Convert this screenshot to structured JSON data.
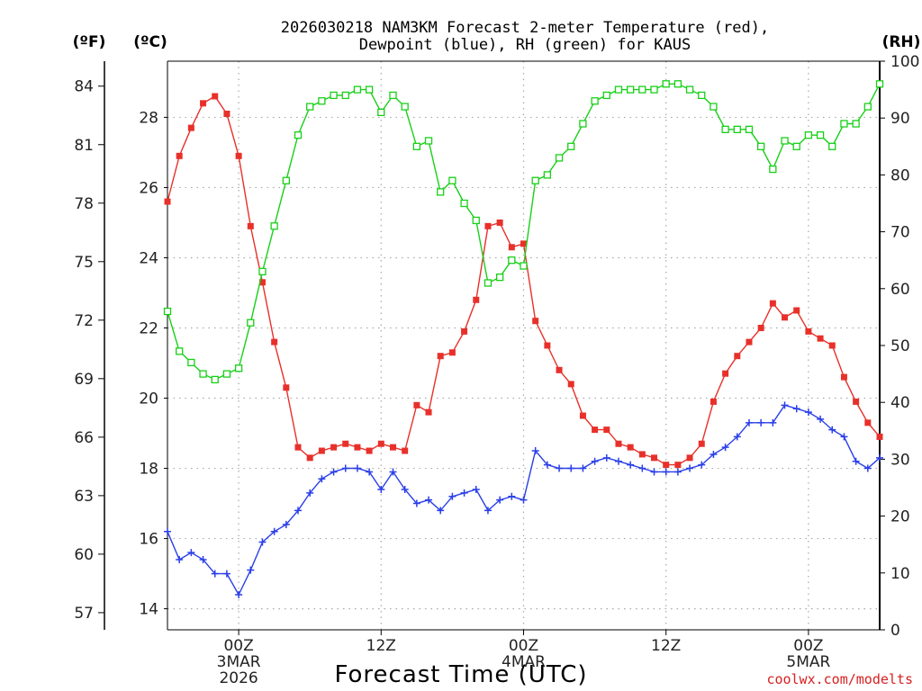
{
  "chart_data": {
    "type": "line",
    "title_line1": "2026030218 NAM3KM Forecast 2-meter Temperature (red),",
    "title_line2": "Dewpoint (blue), RH (green) for KAUS",
    "unit_f": "(ºF)",
    "unit_c": "(ºC)",
    "unit_rh": "(RH)",
    "xlabel": "Forecast Time (UTC)",
    "credit": "coolwx.com/modelts",
    "x_range_hours": [
      0,
      60
    ],
    "x_ticks": [
      {
        "hour": 6,
        "lines": [
          "00Z",
          "3MAR",
          "2026"
        ]
      },
      {
        "hour": 18,
        "lines": [
          "12Z"
        ]
      },
      {
        "hour": 30,
        "lines": [
          "00Z",
          "4MAR"
        ]
      },
      {
        "hour": 42,
        "lines": [
          "12Z"
        ]
      },
      {
        "hour": 54,
        "lines": [
          "00Z",
          "5MAR"
        ]
      }
    ],
    "y_celsius": {
      "range": [
        13.4,
        29.6
      ],
      "ticks": [
        14,
        16,
        18,
        20,
        22,
        24,
        26,
        28
      ]
    },
    "y_fahrenheit": {
      "ticks": [
        57,
        60,
        63,
        66,
        69,
        72,
        75,
        78,
        81,
        84
      ]
    },
    "y_rh": {
      "range": [
        0,
        100
      ],
      "ticks": [
        0,
        10,
        20,
        30,
        40,
        50,
        60,
        70,
        80,
        90,
        100
      ]
    },
    "series": [
      {
        "name": "Temperature (°C)",
        "color": "#e8302a",
        "marker": "filled-square",
        "axis": "celsius",
        "x": [
          0,
          1,
          2,
          3,
          4,
          5,
          6,
          7,
          8,
          9,
          10,
          11,
          12,
          13,
          14,
          15,
          16,
          17,
          18,
          19,
          20,
          21,
          22,
          23,
          24,
          25,
          26,
          27,
          28,
          29,
          30,
          31,
          32,
          33,
          34,
          35,
          36,
          37,
          38,
          39,
          40,
          41,
          42,
          43,
          44,
          45,
          46,
          47,
          48,
          49,
          50,
          51,
          52,
          53,
          54,
          55,
          56,
          57,
          58,
          59,
          60
        ],
        "values": [
          25.6,
          26.9,
          27.7,
          28.4,
          28.6,
          28.1,
          26.9,
          24.9,
          23.3,
          21.6,
          20.3,
          18.6,
          18.3,
          18.5,
          18.6,
          18.7,
          18.6,
          18.5,
          18.7,
          18.6,
          18.5,
          19.8,
          19.6,
          21.2,
          21.3,
          21.9,
          22.8,
          24.9,
          25.0,
          24.3,
          24.4,
          22.2,
          21.5,
          20.8,
          20.4,
          19.5,
          19.1,
          19.1,
          18.7,
          18.6,
          18.4,
          18.3,
          18.1,
          18.1,
          18.3,
          18.7,
          19.9,
          20.7,
          21.2,
          21.6,
          22.0,
          22.7,
          22.3,
          22.5,
          21.9,
          21.7,
          21.5,
          20.6,
          19.9,
          19.3,
          18.9
        ]
      },
      {
        "name": "Dewpoint (°C)",
        "color": "#2a3fe8",
        "marker": "plus",
        "axis": "celsius",
        "x": [
          0,
          1,
          2,
          3,
          4,
          5,
          6,
          7,
          8,
          9,
          10,
          11,
          12,
          13,
          14,
          15,
          16,
          17,
          18,
          19,
          20,
          21,
          22,
          23,
          24,
          25,
          26,
          27,
          28,
          29,
          30,
          31,
          32,
          33,
          34,
          35,
          36,
          37,
          38,
          39,
          40,
          41,
          42,
          43,
          44,
          45,
          46,
          47,
          48,
          49,
          50,
          51,
          52,
          53,
          54,
          55,
          56,
          57,
          58,
          59,
          60
        ],
        "values": [
          16.2,
          15.4,
          15.6,
          15.4,
          15.0,
          15.0,
          14.4,
          15.1,
          15.9,
          16.2,
          16.4,
          16.8,
          17.3,
          17.7,
          17.9,
          18.0,
          18.0,
          17.9,
          17.4,
          17.9,
          17.4,
          17.0,
          17.1,
          16.8,
          17.2,
          17.3,
          17.4,
          16.8,
          17.1,
          17.2,
          17.1,
          18.5,
          18.1,
          18.0,
          18.0,
          18.0,
          18.2,
          18.3,
          18.2,
          18.1,
          18.0,
          17.9,
          17.9,
          17.9,
          18.0,
          18.1,
          18.4,
          18.6,
          18.9,
          19.3,
          19.3,
          19.3,
          19.8,
          19.7,
          19.6,
          19.4,
          19.1,
          18.9,
          18.2,
          18.0,
          18.3
        ]
      },
      {
        "name": "RH (%)",
        "color": "#18d018",
        "marker": "open-square",
        "axis": "rh",
        "x": [
          0,
          1,
          2,
          3,
          4,
          5,
          6,
          7,
          8,
          9,
          10,
          11,
          12,
          13,
          14,
          15,
          16,
          17,
          18,
          19,
          20,
          21,
          22,
          23,
          24,
          25,
          26,
          27,
          28,
          29,
          30,
          31,
          32,
          33,
          34,
          35,
          36,
          37,
          38,
          39,
          40,
          41,
          42,
          43,
          44,
          45,
          46,
          47,
          48,
          49,
          50,
          51,
          52,
          53,
          54,
          55,
          56,
          57,
          58,
          59,
          60
        ],
        "values": [
          56,
          49,
          47,
          45,
          44,
          45,
          46,
          54,
          63,
          71,
          79,
          87,
          92,
          93,
          94,
          94,
          95,
          95,
          91,
          94,
          92,
          85,
          86,
          77,
          79,
          75,
          72,
          61,
          62,
          65,
          64,
          79,
          80,
          83,
          85,
          89,
          93,
          94,
          95,
          95,
          95,
          95,
          96,
          96,
          95,
          94,
          92,
          88,
          88,
          88,
          85,
          81,
          86,
          85,
          87,
          87,
          85,
          89,
          89,
          92,
          96
        ]
      }
    ]
  }
}
